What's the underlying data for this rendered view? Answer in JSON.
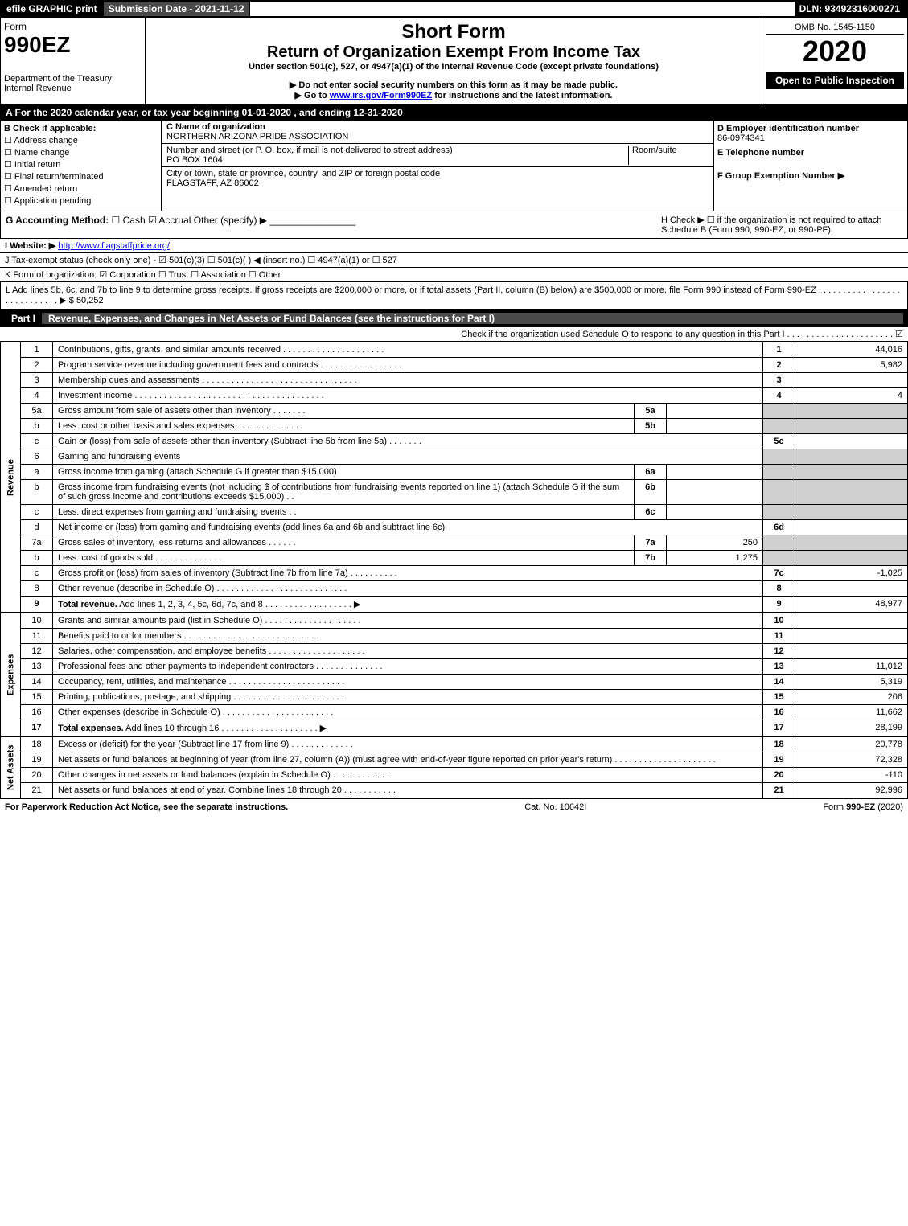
{
  "header": {
    "efile": "efile GRAPHIC print",
    "submission": "Submission Date - 2021-11-12",
    "dln": "DLN: 93492316000271"
  },
  "form": {
    "form_label": "Form",
    "form_number": "990EZ",
    "short_form": "Short Form",
    "title": "Return of Organization Exempt From Income Tax",
    "subtitle": "Under section 501(c), 527, or 4947(a)(1) of the Internal Revenue Code (except private foundations)",
    "warning": "▶ Do not enter social security numbers on this form as it may be made public.",
    "instructions": "▶ Go to www.irs.gov/Form990EZ for instructions and the latest information.",
    "dept": "Department of the Treasury",
    "irs": "Internal Revenue",
    "omb": "OMB No. 1545-1150",
    "year": "2020",
    "open_to": "Open to Public Inspection"
  },
  "row_a": "A For the 2020 calendar year, or tax year beginning 01-01-2020 , and ending 12-31-2020",
  "section_b": {
    "label": "B Check if applicable:",
    "items": [
      "Address change",
      "Name change",
      "Initial return",
      "Final return/terminated",
      "Amended return",
      "Application pending"
    ]
  },
  "section_c": {
    "name_label": "C Name of organization",
    "name": "NORTHERN ARIZONA PRIDE ASSOCIATION",
    "addr_label": "Number and street (or P. O. box, if mail is not delivered to street address)",
    "room_label": "Room/suite",
    "addr": "PO BOX 1604",
    "city_label": "City or town, state or province, country, and ZIP or foreign postal code",
    "city": "FLAGSTAFF, AZ  86002"
  },
  "section_d": {
    "d_label": "D Employer identification number",
    "ein": "86-0974341",
    "e_label": "E Telephone number",
    "f_label": "F Group Exemption Number  ▶"
  },
  "section_g": {
    "g_label": "G Accounting Method:",
    "cash": "Cash",
    "accrual": "Accrual",
    "other": "Other (specify) ▶",
    "h_label": "H Check ▶ ☐ if the organization is not required to attach Schedule B (Form 990, 990-EZ, or 990-PF)."
  },
  "section_i": {
    "label": "I Website: ▶",
    "url": "http://www.flagstaffpride.org/"
  },
  "section_j": "J Tax-exempt status (check only one) - ☑ 501(c)(3) ☐ 501(c)( ) ◀ (insert no.) ☐ 4947(a)(1) or ☐ 527",
  "section_k": "K Form of organization: ☑ Corporation ☐ Trust ☐ Association ☐ Other",
  "section_l": {
    "text": "L Add lines 5b, 6c, and 7b to line 9 to determine gross receipts. If gross receipts are $200,000 or more, or if total assets (Part II, column (B) below) are $500,000 or more, file Form 990 instead of Form 990-EZ . . . . . . . . . . . . . . . . . . . . . . . . . . . . ▶",
    "amount": "$ 50,252"
  },
  "part1": {
    "label": "Part I",
    "title": "Revenue, Expenses, and Changes in Net Assets or Fund Balances (see the instructions for Part I)",
    "check_text": "Check if the organization used Schedule O to respond to any question in this Part I . . . . . . . . . . . . . . . . . . . . . . ☑"
  },
  "sections": {
    "revenue": "Revenue",
    "expenses": "Expenses",
    "net_assets": "Net Assets"
  },
  "rows": [
    {
      "n": "1",
      "desc": "Contributions, gifts, grants, and similar amounts received . . . . . . . . . . . . . . . . . . . . .",
      "box": "1",
      "val": "44,016"
    },
    {
      "n": "2",
      "desc": "Program service revenue including government fees and contracts . . . . . . . . . . . . . . . . .",
      "box": "2",
      "val": "5,982"
    },
    {
      "n": "3",
      "desc": "Membership dues and assessments . . . . . . . . . . . . . . . . . . . . . . . . . . . . . . . .",
      "box": "3",
      "val": ""
    },
    {
      "n": "4",
      "desc": "Investment income . . . . . . . . . . . . . . . . . . . . . . . . . . . . . . . . . . . . . . .",
      "box": "4",
      "val": "4"
    },
    {
      "n": "5a",
      "desc": "Gross amount from sale of assets other than inventory . . . . . . .",
      "mid_box": "5a",
      "mid_val": "",
      "shaded": true
    },
    {
      "n": "b",
      "desc": "Less: cost or other basis and sales expenses . . . . . . . . . . . . .",
      "mid_box": "5b",
      "mid_val": "",
      "shaded": true
    },
    {
      "n": "c",
      "desc": "Gain or (loss) from sale of assets other than inventory (Subtract line 5b from line 5a) . . . . . . .",
      "box": "5c",
      "val": ""
    },
    {
      "n": "6",
      "desc": "Gaming and fundraising events",
      "shaded": true
    },
    {
      "n": "a",
      "desc": "Gross income from gaming (attach Schedule G if greater than $15,000)",
      "mid_box": "6a",
      "mid_val": "",
      "shaded": true
    },
    {
      "n": "b",
      "desc": "Gross income from fundraising events (not including $                    of contributions from fundraising events reported on line 1) (attach Schedule G if the sum of such gross income and contributions exceeds $15,000)   . .",
      "mid_box": "6b",
      "mid_val": "",
      "shaded": true
    },
    {
      "n": "c",
      "desc": "Less: direct expenses from gaming and fundraising events    . .",
      "mid_box": "6c",
      "mid_val": "",
      "shaded": true
    },
    {
      "n": "d",
      "desc": "Net income or (loss) from gaming and fundraising events (add lines 6a and 6b and subtract line 6c)",
      "box": "6d",
      "val": ""
    },
    {
      "n": "7a",
      "desc": "Gross sales of inventory, less returns and allowances . . . . . .",
      "mid_box": "7a",
      "mid_val": "250",
      "shaded": true
    },
    {
      "n": "b",
      "desc": "Less: cost of goods sold      . . . . . . . . . . . . . .",
      "mid_box": "7b",
      "mid_val": "1,275",
      "shaded": true
    },
    {
      "n": "c",
      "desc": "Gross profit or (loss) from sales of inventory (Subtract line 7b from line 7a) . . . . . . . . . .",
      "box": "7c",
      "val": "-1,025"
    },
    {
      "n": "8",
      "desc": "Other revenue (describe in Schedule O) . . . . . . . . . . . . . . . . . . . . . . . . . . .",
      "box": "8",
      "val": ""
    },
    {
      "n": "9",
      "desc": "Total revenue. Add lines 1, 2, 3, 4, 5c, 6d, 7c, and 8 . . . . . . . . . . . . . . . . . . ▶",
      "box": "9",
      "val": "48,977",
      "bold": true
    }
  ],
  "expense_rows": [
    {
      "n": "10",
      "desc": "Grants and similar amounts paid (list in Schedule O) . . . . . . . . . . . . . . . . . . . .",
      "box": "10",
      "val": ""
    },
    {
      "n": "11",
      "desc": "Benefits paid to or for members     . . . . . . . . . . . . . . . . . . . . . . . . . . . .",
      "box": "11",
      "val": ""
    },
    {
      "n": "12",
      "desc": "Salaries, other compensation, and employee benefits . . . . . . . . . . . . . . . . . . . .",
      "box": "12",
      "val": ""
    },
    {
      "n": "13",
      "desc": "Professional fees and other payments to independent contractors . . . . . . . . . . . . . .",
      "box": "13",
      "val": "11,012"
    },
    {
      "n": "14",
      "desc": "Occupancy, rent, utilities, and maintenance . . . . . . . . . . . . . . . . . . . . . . . .",
      "box": "14",
      "val": "5,319"
    },
    {
      "n": "15",
      "desc": "Printing, publications, postage, and shipping . . . . . . . . . . . . . . . . . . . . . . .",
      "box": "15",
      "val": "206"
    },
    {
      "n": "16",
      "desc": "Other expenses (describe in Schedule O)     . . . . . . . . . . . . . . . . . . . . . . .",
      "box": "16",
      "val": "11,662"
    },
    {
      "n": "17",
      "desc": "Total expenses. Add lines 10 through 16    . . . . . . . . . . . . . . . . . . . . ▶",
      "box": "17",
      "val": "28,199",
      "bold": true
    }
  ],
  "asset_rows": [
    {
      "n": "18",
      "desc": "Excess or (deficit) for the year (Subtract line 17 from line 9)       . . . . . . . . . . . . .",
      "box": "18",
      "val": "20,778"
    },
    {
      "n": "19",
      "desc": "Net assets or fund balances at beginning of year (from line 27, column (A)) (must agree with end-of-year figure reported on prior year's return) . . . . . . . . . . . . . . . . . . . . .",
      "box": "19",
      "val": "72,328"
    },
    {
      "n": "20",
      "desc": "Other changes in net assets or fund balances (explain in Schedule O) . . . . . . . . . . . .",
      "box": "20",
      "val": "-110"
    },
    {
      "n": "21",
      "desc": "Net assets or fund balances at end of year. Combine lines 18 through 20 . . . . . . . . . . .",
      "box": "21",
      "val": "92,996"
    }
  ],
  "footer": {
    "left": "For Paperwork Reduction Act Notice, see the separate instructions.",
    "center": "Cat. No. 10642I",
    "right": "Form 990-EZ (2020)"
  }
}
